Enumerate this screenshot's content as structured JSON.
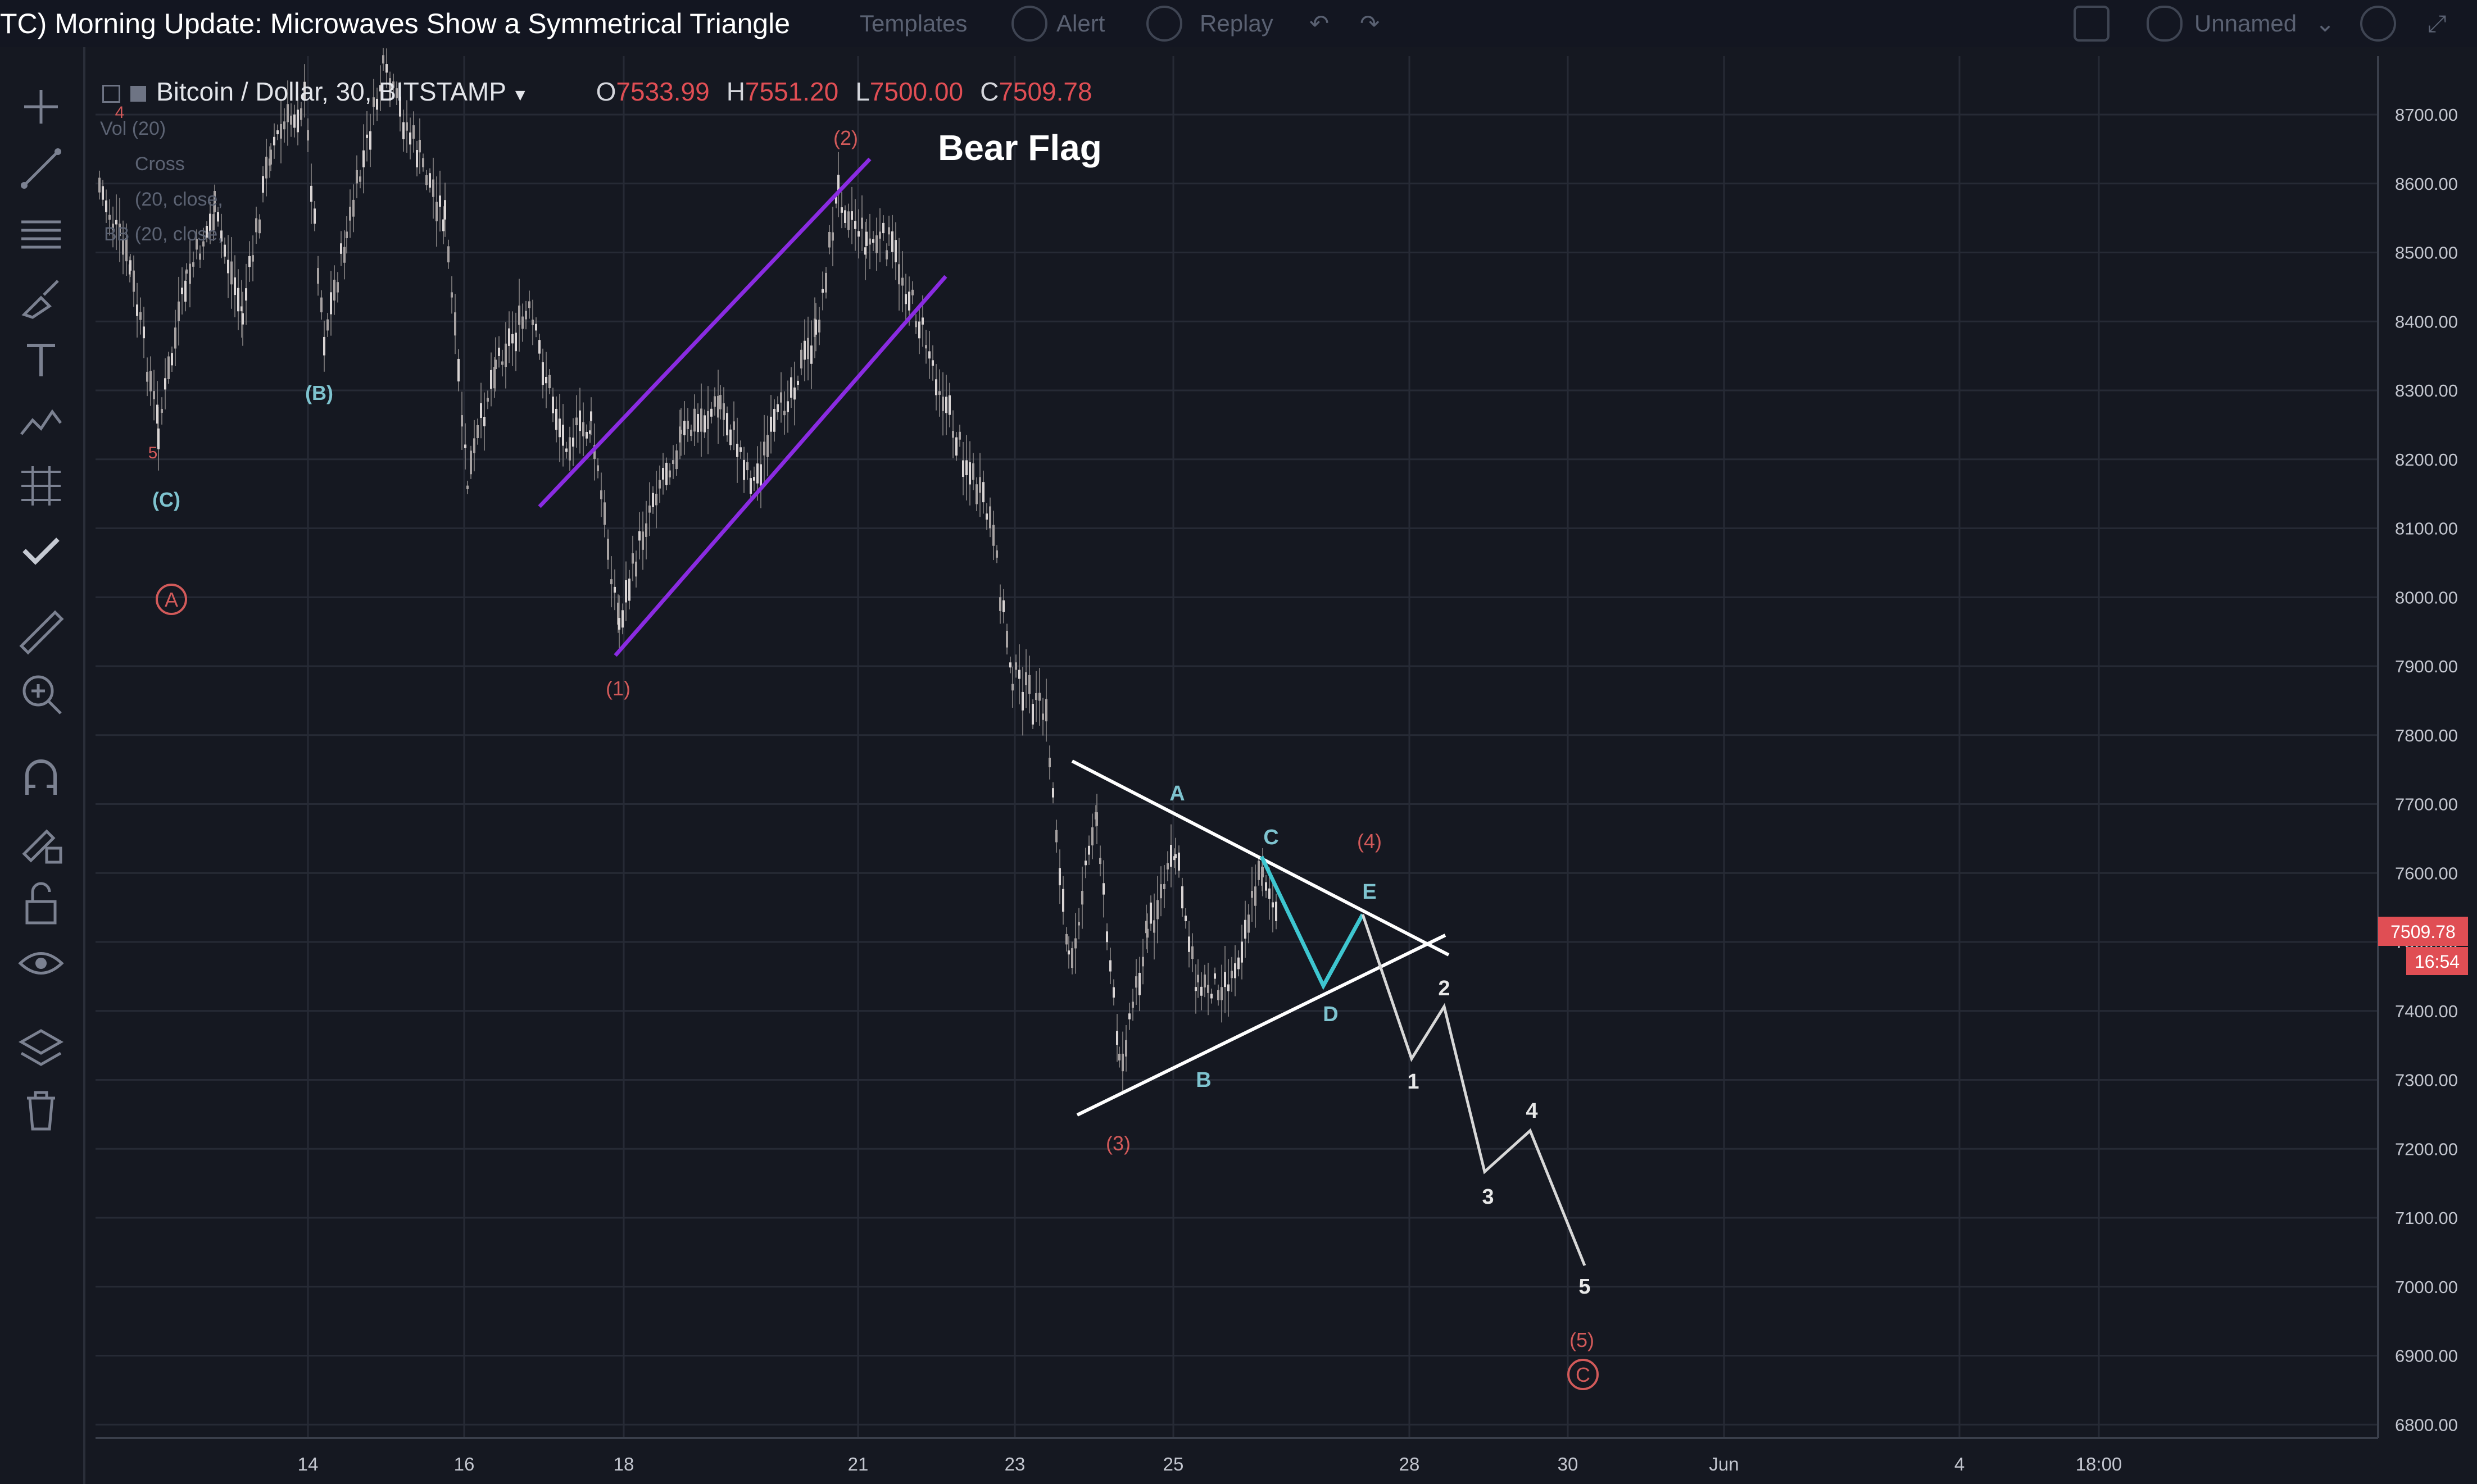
{
  "window": {
    "title": "TC) Morning Update: Microwaves Show a Symmetrical Triangle"
  },
  "toolbar": {
    "templates_label": "Templates",
    "alert_label": "Alert",
    "replay_label": "Replay",
    "layout_name": "Unnamed"
  },
  "legend": {
    "symbol": "Bitcoin / Dollar, 30, BITSTAMP",
    "open_label": "O",
    "open": "7533.99",
    "high_label": "H",
    "high": "7551.20",
    "low_label": "L",
    "low": "7500.00",
    "close_label": "C",
    "close": "7509.78"
  },
  "indicators": [
    "Vol (20)",
    "Cross",
    "(20, close,",
    "BB (20, close,"
  ],
  "price_scale": {
    "labels": [
      "8700.00",
      "8600.00",
      "8500.00",
      "8400.00",
      "8300.00",
      "8200.00",
      "8100.00",
      "8000.00",
      "7900.00",
      "7800.00",
      "7700.00",
      "7600.00",
      "7500.00",
      "7400.00",
      "7300.00",
      "7200.00",
      "7100.00",
      "7000.00",
      "6900.00",
      "6800.00"
    ],
    "last_price": "7509.78",
    "countdown": "16:54"
  },
  "time_scale": {
    "labels": [
      "14",
      "16",
      "18",
      "21",
      "23",
      "25",
      "28",
      "30",
      "Jun",
      "4",
      "18:00"
    ]
  },
  "annotations": {
    "bear_flag": "Bear Flag",
    "wave_1": "(1)",
    "wave_2": "(2)",
    "wave_3": "(3)",
    "wave_4": "(4)",
    "wave_5": "(5)",
    "wave_A_circle": "A",
    "wave_C_circle": "C",
    "B_paren": "(B)",
    "C_paren": "(C)",
    "tri_A": "A",
    "tri_B": "B",
    "tri_C": "C",
    "tri_D": "D",
    "tri_E": "E",
    "proj_1": "1",
    "proj_2": "2",
    "proj_3": "3",
    "proj_4": "4",
    "proj_5": "5",
    "small_5": "5",
    "small_4": "4"
  },
  "colors": {
    "background": "#151821",
    "grid": "#2a2e39",
    "candle": "#c9c4c4",
    "channel": "#8a2be2",
    "triangle": "#ffffff",
    "triangle_leg": "#3ec6d0",
    "wave_red": "#d25a5a",
    "wave_teal": "#7ec3cf",
    "price_tag": "#e04e54",
    "scale_text": "#c3c6cf"
  },
  "icons": [
    "crosshair-icon",
    "trend-line-icon",
    "fib-icon",
    "brush-icon",
    "text-icon",
    "pattern-icon",
    "prediction-icon",
    "check-icon",
    "ruler-icon",
    "zoom-icon",
    "magnet-icon",
    "lock-drawing-icon",
    "unlock-icon",
    "eye-icon",
    "layers-icon",
    "trash-icon"
  ]
}
